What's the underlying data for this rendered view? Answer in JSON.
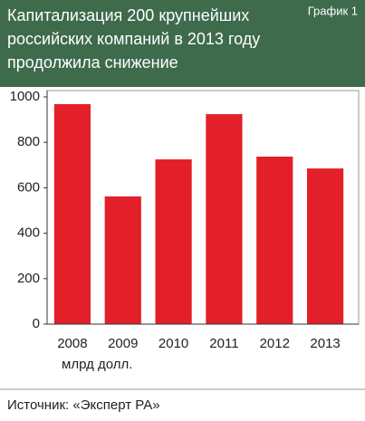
{
  "chart_data": {
    "type": "bar",
    "title": "Капитализация 200 крупнейших российских компаний в 2013 году продолжила снижение",
    "label": "График 1",
    "categories": [
      "2008",
      "2009",
      "2010",
      "2011",
      "2012",
      "2013"
    ],
    "values": [
      968,
      562,
      725,
      924,
      737,
      685
    ],
    "color": "#e3202a",
    "ylim": [
      0,
      1000
    ],
    "yticks": [
      0,
      200,
      400,
      600,
      800,
      1000
    ],
    "y_axis_label": "млрд долл.",
    "source": "Источник: «Эксперт РА»"
  }
}
